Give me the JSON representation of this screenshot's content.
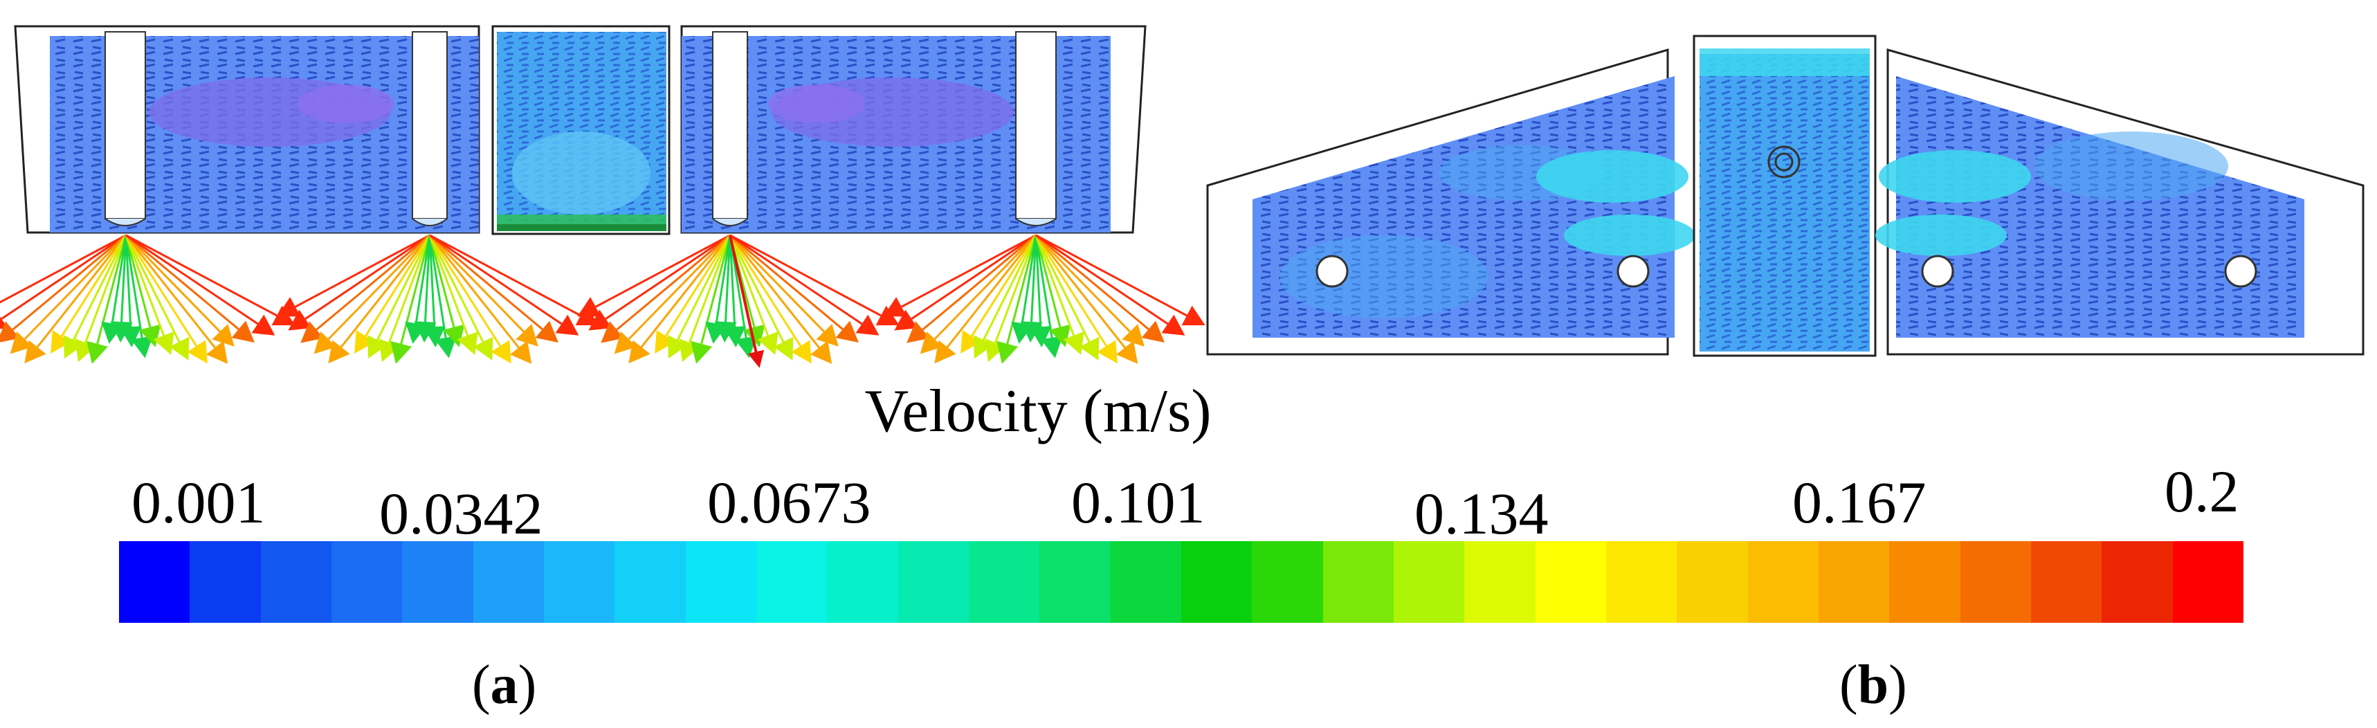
{
  "legend": {
    "title": "Velocity (m/s)",
    "ticks": [
      "0.001",
      "0.0342",
      "0.0673",
      "0.101",
      "0.134",
      "0.167",
      "0.2"
    ],
    "colors": [
      "#0000ff",
      "#0a3cf2",
      "#1257f0",
      "#1a6cf2",
      "#1d82f5",
      "#1fa0f8",
      "#1ab8fa",
      "#12d0f8",
      "#0ae6f5",
      "#08f2e6",
      "#06f0cc",
      "#06eab0",
      "#08e68e",
      "#0ae06a",
      "#0ad83c",
      "#08d00c",
      "#2ad80a",
      "#7ae808",
      "#aef406",
      "#dcfa04",
      "#fefe02",
      "#fce802",
      "#fbd002",
      "#fbbc02",
      "#faa402",
      "#f88a02",
      "#f46c02",
      "#f04a02",
      "#ec2602",
      "#ff0000"
    ]
  },
  "panels": {
    "a": {
      "open": "(",
      "letter": "a",
      "close": ")"
    },
    "b": {
      "open": "(",
      "letter": "b",
      "close": ")"
    }
  },
  "colors": {
    "tank_fill": "#5a86f5",
    "tank_recirc": "#7a78ee",
    "stream_light": "#33d6f5",
    "outline": "#222222"
  }
}
